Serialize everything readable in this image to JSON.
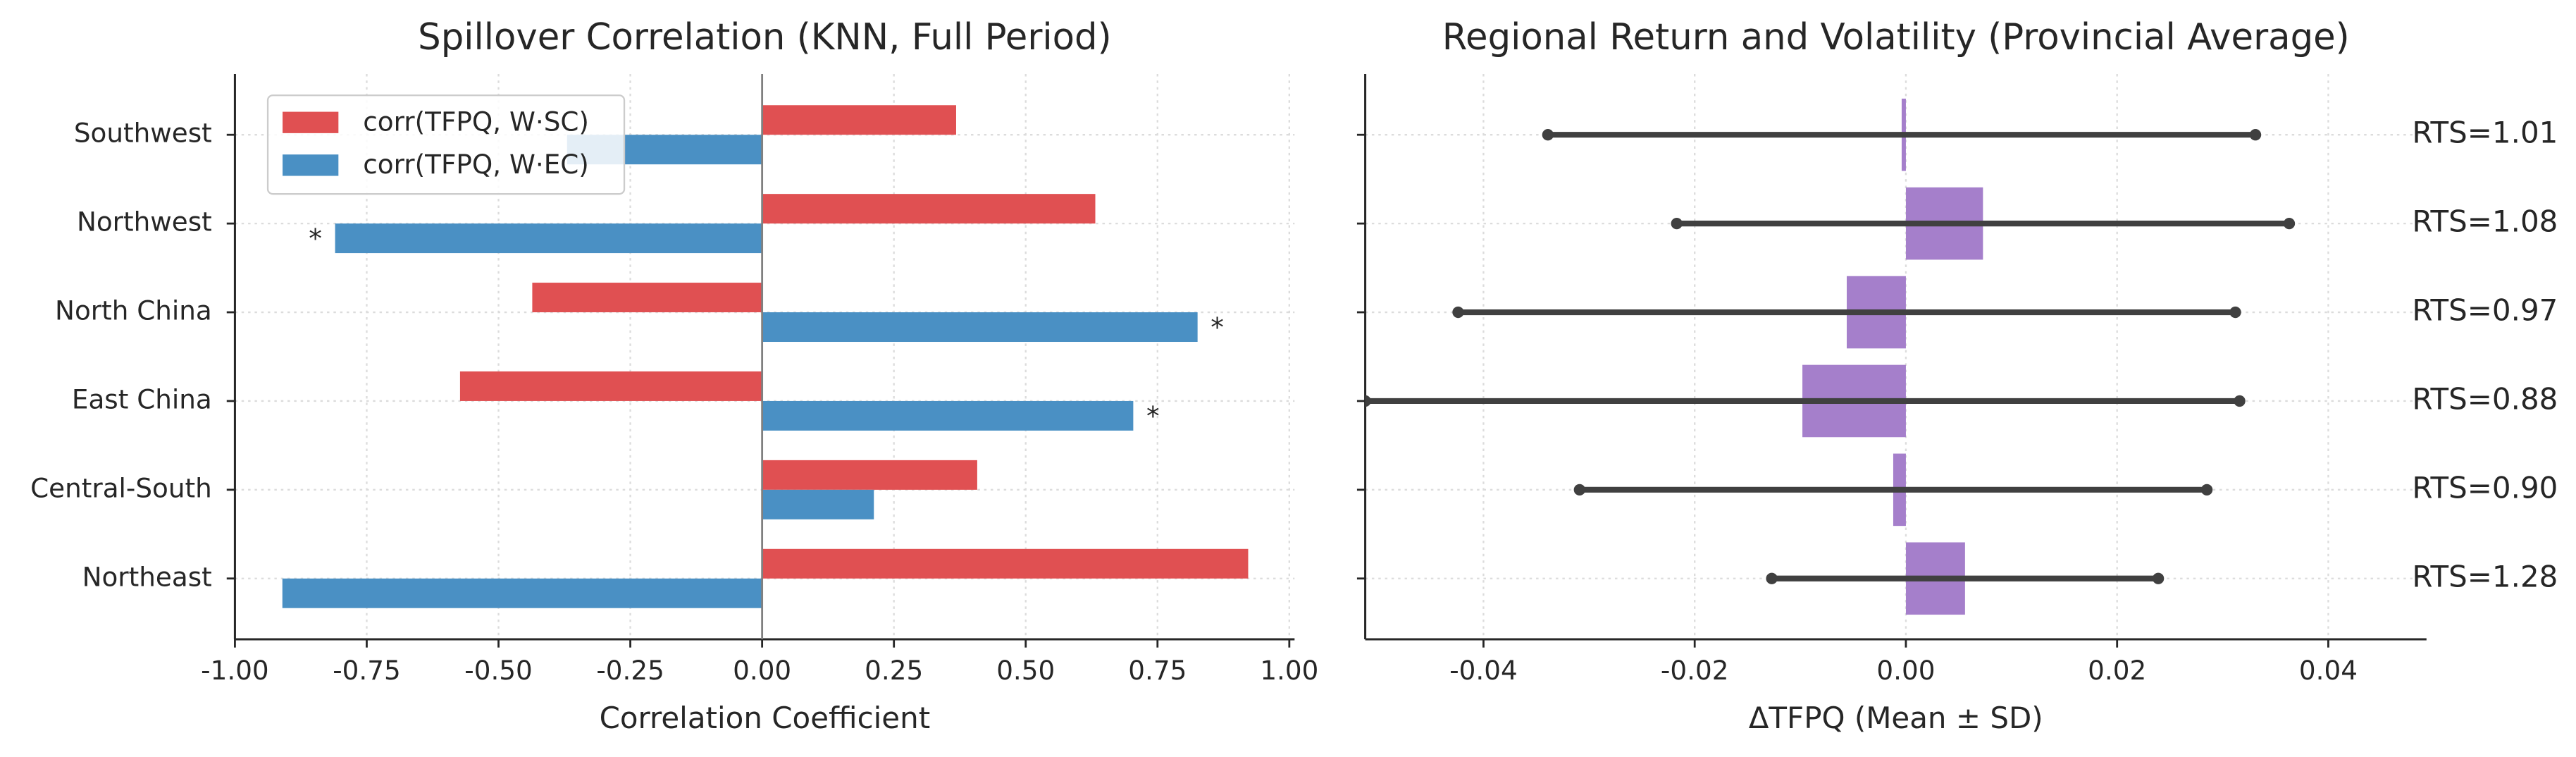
{
  "chart_data": [
    {
      "type": "hbar",
      "title": "Spillover Correlation (KNN, Full Period)",
      "xlabel": "Correlation Coefficient",
      "categories": [
        "Southwest",
        "Northwest",
        "North China",
        "East China",
        "Central-South",
        "Northeast"
      ],
      "series": [
        {
          "name": "corr(TFPQ, W·SC)",
          "color": "#e05052",
          "values": [
            0.368,
            0.632,
            -0.436,
            -0.573,
            0.408,
            0.922
          ],
          "markers": [
            null,
            null,
            null,
            null,
            null,
            null
          ]
        },
        {
          "name": "corr(TFPQ, W·EC)",
          "color": "#4a90c4",
          "values": [
            -0.37,
            -0.81,
            0.826,
            0.704,
            0.212,
            -0.91
          ],
          "markers": [
            null,
            "*",
            "*",
            "*",
            null,
            null
          ]
        }
      ],
      "xlim": [
        -1,
        1.01
      ],
      "xticks": [
        {
          "value": -1,
          "label": "-1.00"
        },
        {
          "value": -0.75,
          "label": "-0.75"
        },
        {
          "value": -0.5,
          "label": "-0.50"
        },
        {
          "value": -0.25,
          "label": "-0.25"
        },
        {
          "value": 0,
          "label": "0.00"
        },
        {
          "value": 0.25,
          "label": "0.25"
        },
        {
          "value": 0.5,
          "label": "0.50"
        },
        {
          "value": 0.75,
          "label": "0.75"
        },
        {
          "value": 1,
          "label": "1.00"
        }
      ],
      "grid": true,
      "legend": "upper left"
    },
    {
      "type": "errorbar_hbar",
      "title": "Regional Return and Volatility (Provincial Average)",
      "xlabel": "ΔTFPQ (Mean ± SD)",
      "values": [
        -0.0004,
        0.0073,
        -0.0056,
        -0.0098,
        -0.0012,
        0.0056
      ],
      "errors": [
        0.0335,
        0.029,
        0.0368,
        0.0414,
        0.0297,
        0.0183
      ],
      "annotations": [
        "RTS=1.01",
        "RTS=1.08",
        "RTS=0.97",
        "RTS=0.88",
        "RTS=0.90",
        "RTS=1.28"
      ],
      "color": "#a57fcb",
      "error_color": "#404040",
      "xlim": [
        -0.0512,
        0.0493
      ],
      "xticks": [
        -0.04,
        -0.02,
        {
          "value": 0,
          "label": "0.00"
        },
        0.02,
        0.04
      ],
      "grid": true
    }
  ]
}
